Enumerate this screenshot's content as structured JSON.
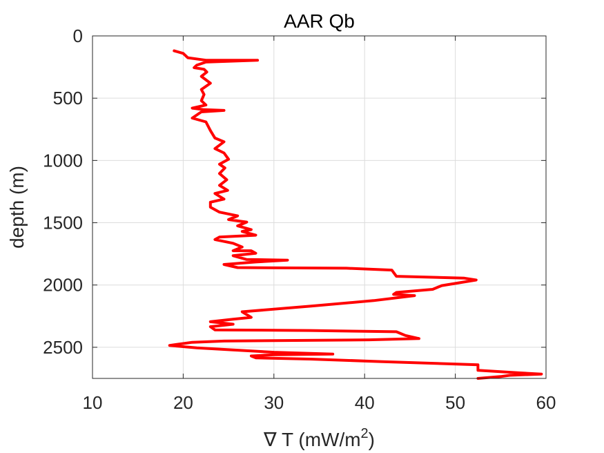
{
  "chart_data": {
    "type": "line",
    "title": "AAR Qb",
    "xlabel": "∇ T (mW/m",
    "xlabel_superscript": "2",
    "xlabel_suffix": ")",
    "ylabel": "depth (m)",
    "xlim": [
      10,
      60
    ],
    "ylim": [
      0,
      2750
    ],
    "y_reversed": true,
    "grid": true,
    "xticks": [
      10,
      20,
      30,
      40,
      50,
      60
    ],
    "yticks": [
      0,
      500,
      1000,
      1500,
      2000,
      2500
    ],
    "series": [
      {
        "color": "#ff0000",
        "points": [
          [
            19.0,
            120
          ],
          [
            20.0,
            140
          ],
          [
            20.5,
            175
          ],
          [
            22.5,
            195
          ],
          [
            28.2,
            195
          ],
          [
            22.5,
            210
          ],
          [
            21.5,
            235
          ],
          [
            21.2,
            255
          ],
          [
            22.3,
            268
          ],
          [
            22.6,
            290
          ],
          [
            22.0,
            325
          ],
          [
            23.0,
            380
          ],
          [
            22.0,
            430
          ],
          [
            22.3,
            470
          ],
          [
            22.0,
            520
          ],
          [
            22.5,
            555
          ],
          [
            21.0,
            580
          ],
          [
            22.3,
            592
          ],
          [
            24.5,
            598
          ],
          [
            22.0,
            610
          ],
          [
            21.0,
            660
          ],
          [
            22.5,
            690
          ],
          [
            23.0,
            760
          ],
          [
            23.5,
            820
          ],
          [
            24.5,
            850
          ],
          [
            23.5,
            905
          ],
          [
            24.5,
            940
          ],
          [
            25.0,
            990
          ],
          [
            24.0,
            1030
          ],
          [
            24.6,
            1060
          ],
          [
            24.0,
            1105
          ],
          [
            24.8,
            1155
          ],
          [
            24.0,
            1200
          ],
          [
            24.9,
            1240
          ],
          [
            23.5,
            1265
          ],
          [
            24.5,
            1310
          ],
          [
            23.0,
            1335
          ],
          [
            23.0,
            1375
          ],
          [
            24.0,
            1415
          ],
          [
            26.0,
            1445
          ],
          [
            25.0,
            1475
          ],
          [
            27.0,
            1495
          ],
          [
            26.0,
            1525
          ],
          [
            27.5,
            1555
          ],
          [
            26.5,
            1570
          ],
          [
            28.0,
            1600
          ],
          [
            24.0,
            1615
          ],
          [
            23.5,
            1635
          ],
          [
            25.5,
            1665
          ],
          [
            26.5,
            1695
          ],
          [
            25.5,
            1725
          ],
          [
            27.5,
            1725
          ],
          [
            28.0,
            1745
          ],
          [
            25.5,
            1765
          ],
          [
            27.0,
            1795
          ],
          [
            31.5,
            1800
          ],
          [
            28.0,
            1815
          ],
          [
            24.5,
            1835
          ],
          [
            26.0,
            1860
          ],
          [
            38.0,
            1865
          ],
          [
            43.0,
            1880
          ],
          [
            43.5,
            1930
          ],
          [
            51.0,
            1945
          ],
          [
            52.3,
            1960
          ],
          [
            48.5,
            2005
          ],
          [
            47.5,
            2035
          ],
          [
            43.5,
            2060
          ],
          [
            43.2,
            2075
          ],
          [
            45.5,
            2085
          ],
          [
            41.0,
            2125
          ],
          [
            34.0,
            2170
          ],
          [
            26.5,
            2215
          ],
          [
            27.5,
            2260
          ],
          [
            25.5,
            2275
          ],
          [
            23.0,
            2295
          ],
          [
            25.5,
            2315
          ],
          [
            23.0,
            2335
          ],
          [
            23.5,
            2360
          ],
          [
            34.0,
            2365
          ],
          [
            43.5,
            2375
          ],
          [
            44.5,
            2405
          ],
          [
            46.0,
            2430
          ],
          [
            40.5,
            2440
          ],
          [
            24.5,
            2450
          ],
          [
            21.0,
            2460
          ],
          [
            18.5,
            2485
          ],
          [
            21.5,
            2505
          ],
          [
            30.0,
            2540
          ],
          [
            36.5,
            2555
          ],
          [
            30.0,
            2560
          ],
          [
            27.5,
            2570
          ],
          [
            28.0,
            2585
          ],
          [
            34.0,
            2595
          ],
          [
            42.0,
            2615
          ],
          [
            52.5,
            2640
          ],
          [
            52.5,
            2685
          ],
          [
            57.0,
            2705
          ],
          [
            59.5,
            2715
          ],
          [
            56.0,
            2725
          ],
          [
            55.0,
            2735
          ],
          [
            52.5,
            2750
          ]
        ]
      }
    ]
  }
}
